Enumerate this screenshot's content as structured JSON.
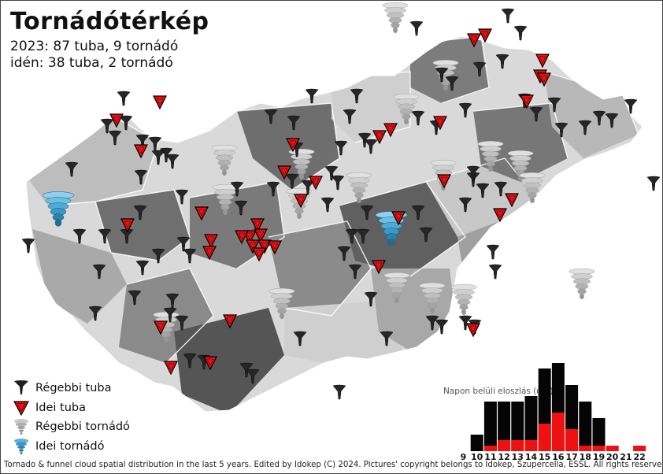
{
  "title": "Tornádótérkép",
  "stats": {
    "line1": "2023: 87 tuba, 9 tornádó",
    "line2": "idén: 38 tuba, 2 tornádó"
  },
  "legend": [
    {
      "icon": "dark-funnel-icon",
      "label": "Régebbi tuba"
    },
    {
      "icon": "red-triangle-icon",
      "label": "Idei tuba"
    },
    {
      "icon": "grey-tornado-icon",
      "label": "Régebbi tornádó"
    },
    {
      "icon": "blue-tornado-icon",
      "label": "Idei tornádó"
    }
  ],
  "colors": {
    "old_funnel": "#1e1e1e",
    "this_year": "#ee1111",
    "old_tornado": "#b4b4b4",
    "this_year_tornado": "#3a98c4"
  },
  "chart_data": {
    "type": "bar",
    "title": "Napon belüli eloszlás (óra)",
    "categories": [
      "9",
      "10",
      "11",
      "12",
      "13",
      "14",
      "15",
      "16",
      "17",
      "18",
      "19",
      "20",
      "21",
      "22"
    ],
    "series": [
      {
        "values": [
          0,
          3,
          9,
          9,
          9,
          10,
          15,
          16,
          12,
          9,
          6,
          0,
          0,
          0
        ]
      },
      {
        "values": [
          0,
          0,
          1,
          2,
          2,
          2,
          5,
          7,
          4,
          1,
          1,
          1,
          0,
          1
        ]
      }
    ]
  },
  "footer": "Tornado & funnel cloud spatial distribution in the last 5 years. Edited by Idokep (C) 2024. Pictures' copyright belongs to Idokep, Szupercella, ESSL. All rights reserved."
}
